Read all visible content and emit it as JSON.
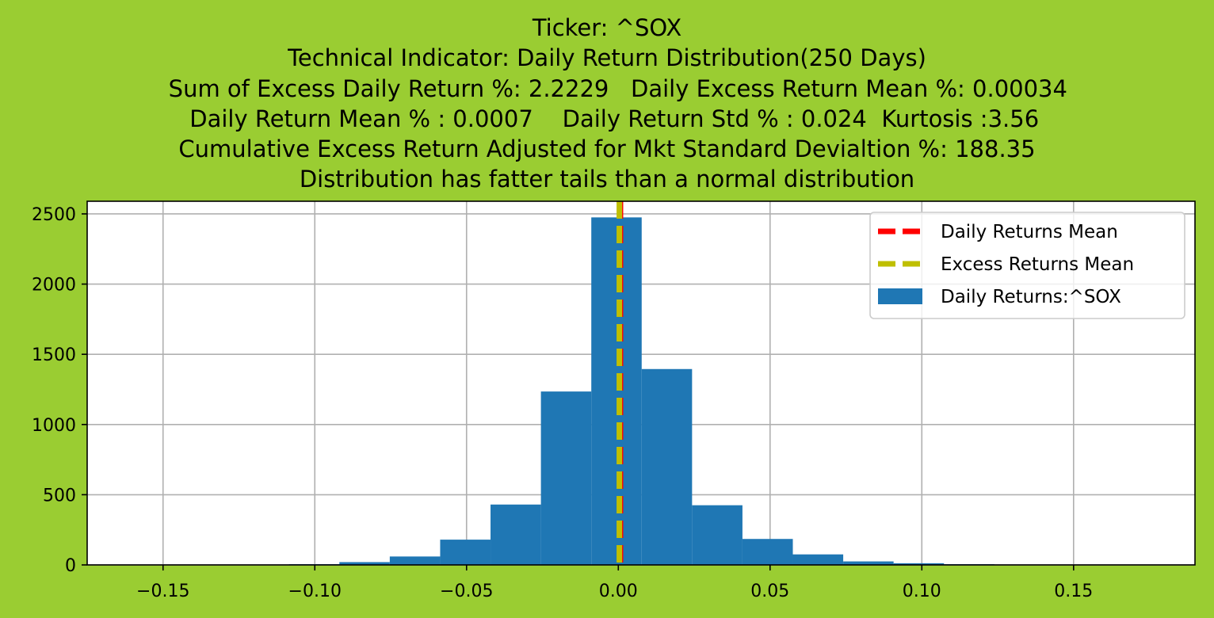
{
  "chart_data": {
    "type": "bar",
    "title_lines": [
      "Ticker: ^SOX",
      "Technical Indicator: Daily Return Distribution(250 Days)",
      "   Sum of Excess Daily Return %: 2.2229   Daily Excess Return Mean %: 0.00034",
      "  Daily Return Mean % : 0.0007    Daily Return Std % : 0.024  Kurtosis :3.56",
      "Cumulative Excess Return Adjusted for Mkt Standard Devialtion %: 188.35",
      "Distribution has fatter tails than a normal distribution"
    ],
    "xlabel": "",
    "ylabel": "",
    "xlim": [
      -0.175,
      0.19
    ],
    "ylim": [
      0,
      2590
    ],
    "xticks": [
      -0.15,
      -0.1,
      -0.05,
      0.0,
      0.05,
      0.1,
      0.15
    ],
    "xtick_labels": [
      "−0.15",
      "−0.10",
      "−0.05",
      "0.00",
      "0.05",
      "0.10",
      "0.15"
    ],
    "yticks": [
      0,
      500,
      1000,
      1500,
      2000,
      2500
    ],
    "ytick_labels": [
      "0",
      "500",
      "1000",
      "1500",
      "2000",
      "2500"
    ],
    "grid": true,
    "legend_position": "top-right",
    "histogram": {
      "name": "Daily Returns:^SOX",
      "color": "#1f77b4",
      "bins": [
        {
          "x0": -0.1085,
          "x1": -0.0919,
          "count": 5
        },
        {
          "x0": -0.0919,
          "x1": -0.0753,
          "count": 20
        },
        {
          "x0": -0.0753,
          "x1": -0.0587,
          "count": 60
        },
        {
          "x0": -0.0587,
          "x1": -0.0421,
          "count": 180
        },
        {
          "x0": -0.0421,
          "x1": -0.0255,
          "count": 430
        },
        {
          "x0": -0.0255,
          "x1": -0.0089,
          "count": 1235
        },
        {
          "x0": -0.0089,
          "x1": 0.0077,
          "count": 2475
        },
        {
          "x0": 0.0077,
          "x1": 0.0243,
          "count": 1395
        },
        {
          "x0": 0.0243,
          "x1": 0.0409,
          "count": 425
        },
        {
          "x0": 0.0409,
          "x1": 0.0575,
          "count": 185
        },
        {
          "x0": 0.0575,
          "x1": 0.0741,
          "count": 75
        },
        {
          "x0": 0.0741,
          "x1": 0.0907,
          "count": 25
        },
        {
          "x0": 0.0907,
          "x1": 0.1073,
          "count": 12
        },
        {
          "x0": 0.1073,
          "x1": 0.1239,
          "count": 5
        }
      ]
    },
    "vlines": [
      {
        "name": "Daily Returns Mean",
        "x": 0.0007,
        "color": "#ff0000",
        "style": "dashed"
      },
      {
        "name": "Excess Returns Mean",
        "x": 0.00034,
        "color": "#bfbf00",
        "style": "dashed"
      }
    ],
    "legend": [
      {
        "label": "Daily Returns Mean",
        "kind": "line",
        "color": "#ff0000"
      },
      {
        "label": "Excess Returns Mean",
        "kind": "line",
        "color": "#bfbf00"
      },
      {
        "label": "Daily Returns:^SOX",
        "kind": "patch",
        "color": "#1f77b4"
      }
    ],
    "background": "#9acd32"
  }
}
